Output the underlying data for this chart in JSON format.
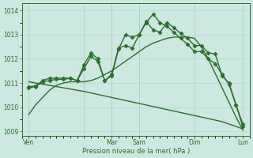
{
  "background_color": "#cce8e0",
  "line_color": "#2d6e2d",
  "marker": "D",
  "markersize": 2.5,
  "linewidth": 1.0,
  "xlabel": "Pression niveau de la mer( hPa )",
  "ylim": [
    1008.8,
    1014.3
  ],
  "yticks": [
    1009,
    1010,
    1011,
    1012,
    1013,
    1014
  ],
  "xlim": [
    0,
    33
  ],
  "xtick_positions": [
    1,
    9,
    13,
    17,
    25,
    32
  ],
  "xtick_labels": [
    "Ven",
    "",
    "Mar",
    "Sam",
    "Dim",
    "Lun"
  ],
  "vline_positions": [
    1,
    9,
    13,
    17,
    25,
    32
  ],
  "lines": [
    {
      "x": [
        1,
        4,
        9,
        13,
        17,
        21,
        25,
        29,
        32
      ],
      "y": [
        1011.05,
        1010.9,
        1010.65,
        1010.4,
        1010.15,
        1009.9,
        1009.65,
        1009.4,
        1009.1
      ],
      "has_marker": false
    },
    {
      "x": [
        1,
        2,
        3,
        4,
        5,
        6,
        7,
        8,
        9,
        10,
        11,
        12,
        13,
        14,
        15,
        16,
        17,
        18,
        19,
        20,
        21,
        22,
        23,
        24,
        25,
        26,
        27,
        28,
        29,
        30,
        31,
        32
      ],
      "y": [
        1009.7,
        1010.1,
        1010.4,
        1010.7,
        1010.9,
        1011.0,
        1011.05,
        1011.05,
        1011.05,
        1011.1,
        1011.2,
        1011.35,
        1011.5,
        1011.7,
        1011.9,
        1012.1,
        1012.3,
        1012.5,
        1012.65,
        1012.75,
        1012.85,
        1012.9,
        1012.9,
        1012.9,
        1012.85,
        1012.5,
        1012.0,
        1011.4,
        1010.8,
        1010.2,
        1009.6,
        1009.05
      ],
      "has_marker": false
    },
    {
      "x": [
        1,
        2,
        3,
        4,
        5,
        6,
        7,
        8,
        9,
        10,
        11,
        12,
        13,
        14,
        15,
        16,
        17,
        18,
        19,
        20,
        21,
        22,
        23,
        24,
        25,
        26,
        27,
        28,
        29,
        30,
        31,
        32
      ],
      "y": [
        1010.8,
        1010.85,
        1011.05,
        1011.1,
        1011.15,
        1011.15,
        1011.2,
        1011.1,
        1011.75,
        1012.25,
        1012.0,
        1011.1,
        1011.35,
        1012.45,
        1012.55,
        1012.45,
        1013.0,
        1013.55,
        1013.2,
        1013.1,
        1013.5,
        1013.3,
        1013.05,
        1012.85,
        1012.55,
        1012.55,
        1012.25,
        1012.2,
        1011.3,
        1011.0,
        1010.1,
        1009.3
      ],
      "has_marker": true
    },
    {
      "x": [
        1,
        2,
        3,
        4,
        5,
        6,
        7,
        8,
        9,
        10,
        11,
        12,
        13,
        14,
        15,
        16,
        17,
        18,
        19,
        20,
        21,
        22,
        23,
        24,
        25,
        26,
        27,
        28,
        29,
        30,
        31,
        32
      ],
      "y": [
        1010.85,
        1010.88,
        1011.1,
        1011.2,
        1011.2,
        1011.2,
        1011.2,
        1011.1,
        1011.6,
        1012.1,
        1011.9,
        1011.1,
        1011.3,
        1012.4,
        1013.0,
        1012.9,
        1013.0,
        1013.5,
        1013.85,
        1013.5,
        1013.35,
        1013.1,
        1012.85,
        1012.6,
        1012.3,
        1012.3,
        1012.0,
        1011.8,
        1011.35,
        1010.95,
        1010.1,
        1009.2
      ],
      "has_marker": true
    }
  ],
  "grid_major_color": "#b8ddd4",
  "grid_minor_color": "#cce8df"
}
